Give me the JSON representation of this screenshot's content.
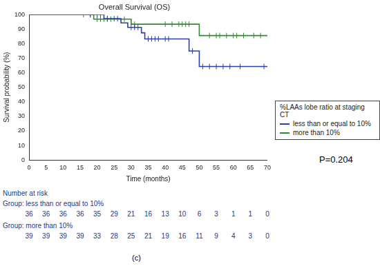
{
  "chart_data": {
    "type": "line",
    "title": "Overall Survival (OS)",
    "xlabel": "Time (months)",
    "ylabel": "Survival probability (%)",
    "xlim": [
      0,
      70
    ],
    "xticks": [
      0,
      5,
      10,
      15,
      20,
      25,
      30,
      35,
      40,
      45,
      50,
      55,
      60,
      65,
      70
    ],
    "ylim": [
      0,
      100
    ],
    "yticks": [
      0,
      10,
      20,
      30,
      40,
      50,
      60,
      70,
      80,
      90,
      100
    ],
    "grid": false,
    "legend": "right",
    "legend_title": "%LAAs lobe ratio at staging CT",
    "series": [
      {
        "name": "less than or equal to 10%",
        "color": "#2a3fa8",
        "line_style": "step",
        "marker": "tick",
        "x": [
          0,
          22,
          27,
          29,
          33,
          34,
          47,
          50,
          70
        ],
        "values": [
          100,
          97.2,
          94.3,
          91.2,
          87.5,
          83.3,
          75,
          64.3,
          64.3
        ],
        "censored_x": [
          18,
          20,
          21,
          23,
          25,
          26,
          30,
          31,
          32,
          35,
          36,
          37,
          38,
          40,
          41,
          48,
          51,
          53,
          55,
          57,
          59,
          62,
          69
        ],
        "censored_values": [
          100,
          100,
          100,
          97.2,
          97.2,
          97.2,
          91.2,
          91.2,
          91.2,
          83.3,
          83.3,
          83.3,
          83.3,
          83.3,
          83.3,
          75,
          64.3,
          64.3,
          64.3,
          64.3,
          64.3,
          64.3,
          64.3
        ]
      },
      {
        "name": "more than 10%",
        "color": "#2e8b2e",
        "line_style": "step",
        "marker": "tick",
        "x": [
          0,
          19,
          30,
          50,
          70
        ],
        "values": [
          100,
          96.9,
          93.4,
          85.6,
          85.6
        ],
        "censored_x": [
          16,
          18,
          20,
          21,
          22,
          23,
          24,
          28,
          31,
          40,
          42,
          44,
          45,
          46,
          47,
          53,
          55,
          56,
          58,
          60,
          61,
          63,
          66,
          68
        ],
        "censored_values": [
          100,
          100,
          96.9,
          96.9,
          96.9,
          96.9,
          96.9,
          96.9,
          93.4,
          93.4,
          93.4,
          93.4,
          93.4,
          93.4,
          93.4,
          85.6,
          85.6,
          85.6,
          85.6,
          85.6,
          85.6,
          85.6,
          85.6,
          85.6
        ]
      }
    ],
    "annotations": [
      "P=0.204"
    ],
    "at_risk": {
      "title": "Number at risk",
      "x": [
        0,
        5,
        10,
        15,
        20,
        25,
        30,
        35,
        40,
        45,
        50,
        55,
        60,
        65,
        70
      ],
      "groups": [
        {
          "name": "Group: less than or equal to 10%",
          "values": [
            36,
            36,
            36,
            36,
            35,
            29,
            21,
            16,
            13,
            10,
            6,
            3,
            1,
            1,
            0
          ]
        },
        {
          "name": "Group: more than 10%",
          "values": [
            39,
            39,
            39,
            39,
            33,
            28,
            25,
            21,
            19,
            16,
            11,
            9,
            4,
            3,
            0
          ]
        }
      ]
    },
    "caption": "(c)"
  }
}
